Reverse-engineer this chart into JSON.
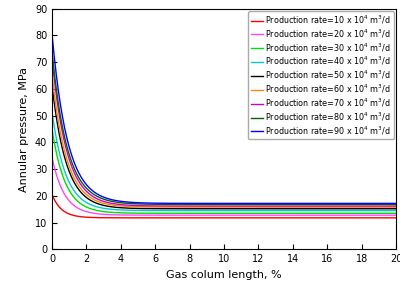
{
  "title": "",
  "xlabel": "Gas colum length, %",
  "ylabel": "Annular pressure, MPa",
  "xlim": [
    0,
    20
  ],
  "ylim": [
    0,
    90
  ],
  "xticks": [
    0,
    2,
    4,
    6,
    8,
    10,
    12,
    14,
    16,
    18,
    20
  ],
  "yticks": [
    0,
    10,
    20,
    30,
    40,
    50,
    60,
    70,
    80,
    90
  ],
  "series": [
    {
      "label": "Production rate=10 x 10$^4$ m$^3$/d",
      "color": "#FF0000",
      "p0": 20.5,
      "pf": 11.8,
      "k": 1.8
    },
    {
      "label": "Production rate=20 x 10$^4$ m$^3$/d",
      "color": "#FF44FF",
      "p0": 34.5,
      "pf": 12.8,
      "k": 1.4
    },
    {
      "label": "Production rate=30 x 10$^4$ m$^3$/d",
      "color": "#00DD00",
      "p0": 45.0,
      "pf": 13.5,
      "k": 1.3
    },
    {
      "label": "Production rate=40 x 10$^4$ m$^3$/d",
      "color": "#00CCCC",
      "p0": 51.5,
      "pf": 14.5,
      "k": 1.25
    },
    {
      "label": "Production rate=50 x 10$^4$ m$^3$/d",
      "color": "#000000",
      "p0": 61.5,
      "pf": 15.2,
      "k": 1.2
    },
    {
      "label": "Production rate=60 x 10$^4$ m$^3$/d",
      "color": "#FF8800",
      "p0": 65.5,
      "pf": 15.8,
      "k": 1.18
    },
    {
      "label": "Production rate=70 x 10$^4$ m$^3$/d",
      "color": "#CC00CC",
      "p0": 71.5,
      "pf": 16.2,
      "k": 1.15
    },
    {
      "label": "Production rate=80 x 10$^4$ m$^3$/d",
      "color": "#006600",
      "p0": 74.0,
      "pf": 16.8,
      "k": 1.12
    },
    {
      "label": "Production rate=90 x 10$^4$ m$^3$/d",
      "color": "#0000FF",
      "p0": 80.5,
      "pf": 17.2,
      "k": 1.1
    }
  ],
  "legend_fontsize": 5.8,
  "axis_fontsize": 8,
  "tick_fontsize": 7
}
